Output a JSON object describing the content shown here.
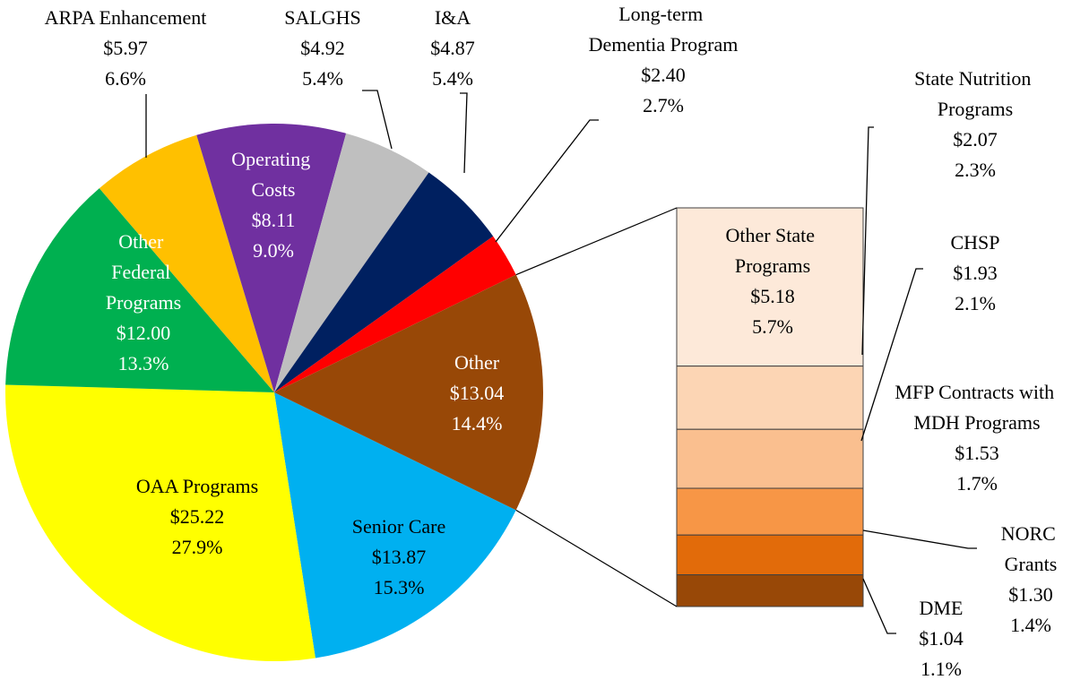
{
  "chart_data": {
    "type": "pie",
    "categories": [
      "Senior Care",
      "OAA Programs",
      "Other Federal Programs",
      "ARPA Enhancement",
      "Operating Costs",
      "SALGHS",
      "I&A",
      "Long-term Dementia Program",
      "Other"
    ],
    "values": [
      13.87,
      25.22,
      12.0,
      5.97,
      8.11,
      4.92,
      4.87,
      2.4,
      13.04
    ],
    "value_labels": [
      "$13.87",
      "$25.22",
      "$12.00",
      "$5.97",
      "$8.11",
      "$4.92",
      "$4.87",
      "$2.40",
      "$13.04"
    ],
    "percents": [
      15.3,
      27.9,
      13.3,
      6.6,
      9.0,
      5.4,
      5.4,
      2.7,
      14.4
    ],
    "percent_labels": [
      "15.3%",
      "27.9%",
      "13.3%",
      "6.6%",
      "9.0%",
      "5.4%",
      "5.4%",
      "2.7%",
      "14.4%"
    ],
    "colors": [
      "#00b0f0",
      "#ffff00",
      "#00b050",
      "#ffc000",
      "#7030a0",
      "#bfbfbf",
      "#002060",
      "#ff0000",
      "#984807"
    ],
    "breakdown": {
      "categories": [
        "Other State Programs",
        "State Nutrition Programs",
        "CHSP",
        "MFP Contracts with MDH Programs",
        "NORC Grants",
        "DME"
      ],
      "values": [
        5.18,
        2.07,
        1.93,
        1.53,
        1.3,
        1.04
      ],
      "value_labels": [
        "$5.18",
        "$2.07",
        "$1.93",
        "$1.53",
        "$1.30",
        "$1.04"
      ],
      "percents": [
        5.7,
        2.3,
        2.1,
        1.7,
        1.4,
        1.1
      ],
      "percent_labels": [
        "5.7%",
        "2.3%",
        "2.1%",
        "1.7%",
        "1.4%",
        "1.1%"
      ],
      "colors": [
        "#fde9d9",
        "#fcd5b4",
        "#fabf8f",
        "#f79646",
        "#e26b0a",
        "#984807"
      ]
    }
  }
}
